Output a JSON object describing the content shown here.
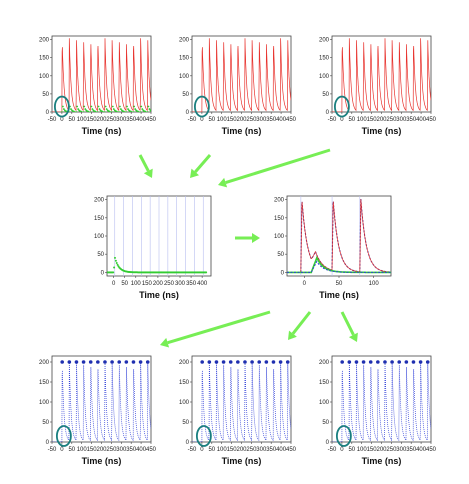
{
  "colors": {
    "red": "#e8322d",
    "green": "#33cc33",
    "blue": "#2f3fd8",
    "navy": "#1f2fb0",
    "teal": "#1a7f7f",
    "arrow": "#77ee55",
    "frame": "#444444"
  },
  "chart_data": [
    {
      "id": "top-left",
      "type": "line",
      "xlabel": "Time (ns)",
      "xticks": [
        "-50",
        "0",
        "50",
        "100",
        "150",
        "200",
        "250",
        "300",
        "350",
        "400",
        "450"
      ],
      "yticks": [
        "0",
        "50",
        "100",
        "150",
        "200"
      ],
      "xlim": [
        -50,
        450
      ],
      "ylim": [
        0,
        210
      ],
      "series": [
        {
          "color": "red",
          "style": "pulse-train",
          "pulse_times": [
            0,
            36,
            72,
            108,
            144,
            180,
            216,
            252,
            288,
            324,
            360,
            396,
            432
          ],
          "peak": 200
        },
        {
          "color": "green",
          "style": "dots",
          "pulse_times": [
            0,
            36,
            72,
            108,
            144,
            180,
            216,
            252,
            288,
            324,
            360,
            396,
            432
          ],
          "peak": 25
        }
      ],
      "highlight": {
        "x": 0,
        "y": 15
      }
    },
    {
      "id": "top-middle",
      "type": "line",
      "xlabel": "Time (ns)",
      "xticks": [
        "-50",
        "0",
        "50",
        "100",
        "150",
        "200",
        "250",
        "300",
        "350",
        "400",
        "450"
      ],
      "yticks": [
        "0",
        "50",
        "100",
        "150",
        "200"
      ],
      "xlim": [
        -50,
        450
      ],
      "ylim": [
        0,
        210
      ],
      "series": [
        {
          "color": "red",
          "style": "pulse-train",
          "pulse_times": [
            0,
            36,
            72,
            108,
            144,
            180,
            216,
            252,
            288,
            324,
            360,
            396,
            432
          ],
          "peak": 200
        }
      ],
      "highlight": {
        "x": 0,
        "y": 15
      }
    },
    {
      "id": "top-right",
      "type": "line",
      "xlabel": "Time (ns)",
      "xticks": [
        "-50",
        "0",
        "50",
        "100",
        "150",
        "200",
        "250",
        "300",
        "350",
        "400",
        "450"
      ],
      "yticks": [
        "0",
        "50",
        "100",
        "150",
        "200"
      ],
      "xlim": [
        -50,
        450
      ],
      "ylim": [
        0,
        210
      ],
      "series": [
        {
          "color": "red",
          "style": "pulse-train",
          "pulse_times": [
            0,
            36,
            72,
            108,
            144,
            180,
            216,
            252,
            288,
            324,
            360,
            396,
            432
          ],
          "peak": 200
        }
      ],
      "highlight": {
        "x": 0,
        "y": 15
      }
    },
    {
      "id": "middle-left",
      "type": "line",
      "xlabel": "Time (ns)",
      "xticks": [
        "0",
        "50",
        "100",
        "150",
        "200",
        "250",
        "300",
        "350",
        "400"
      ],
      "yticks": [
        "0",
        "50",
        "100",
        "150",
        "200"
      ],
      "xlim": [
        -30,
        440
      ],
      "ylim": [
        -10,
        210
      ],
      "vlines": [
        5,
        45,
        85,
        125,
        165,
        205,
        245,
        285,
        325,
        365,
        405
      ],
      "series": [
        {
          "color": "green",
          "style": "dots-decay",
          "start": 0,
          "peak": 40,
          "decay": 18,
          "baseline": 0,
          "x_end": 420
        }
      ]
    },
    {
      "id": "middle-right",
      "type": "line",
      "xlabel": "Time (ns)",
      "xticks": [
        "0",
        "50",
        "100"
      ],
      "yticks": [
        "0",
        "50",
        "100",
        "150",
        "200"
      ],
      "xlim": [
        -25,
        125
      ],
      "ylim": [
        -10,
        210
      ],
      "vlines": [
        -5,
        40,
        80
      ],
      "series": [
        {
          "color": "navy",
          "style": "fit",
          "pulse_times": [
            -5,
            40,
            80
          ],
          "peak": 200
        },
        {
          "color": "red",
          "style": "data",
          "pulse_times": [
            -5,
            40,
            80
          ],
          "peak": 200
        },
        {
          "color": "green",
          "style": "baseline-bump",
          "start": 10,
          "peak": 40
        },
        {
          "color": "blue",
          "style": "dashed-bump",
          "start": 10,
          "peak": 30
        }
      ]
    },
    {
      "id": "bottom-left",
      "type": "line",
      "xlabel": "Time (ns)",
      "xticks": [
        "-50",
        "0",
        "50",
        "100",
        "150",
        "200",
        "250",
        "300",
        "350",
        "400",
        "450"
      ],
      "yticks": [
        "0",
        "50",
        "100",
        "150",
        "200"
      ],
      "xlim": [
        -50,
        450
      ],
      "ylim": [
        0,
        215
      ],
      "series": [
        {
          "color": "blue",
          "style": "pulse-train-dots",
          "pulse_times": [
            0,
            36,
            72,
            108,
            144,
            180,
            216,
            252,
            288,
            324,
            360,
            396,
            432
          ],
          "peak": 200
        }
      ],
      "highlight": {
        "x": 10,
        "y": 15
      }
    },
    {
      "id": "bottom-middle",
      "type": "line",
      "xlabel": "Time (ns)",
      "xticks": [
        "-50",
        "0",
        "50",
        "100",
        "150",
        "200",
        "250",
        "300",
        "350",
        "400",
        "450"
      ],
      "yticks": [
        "0",
        "50",
        "100",
        "150",
        "200"
      ],
      "xlim": [
        -50,
        450
      ],
      "ylim": [
        0,
        215
      ],
      "series": [
        {
          "color": "blue",
          "style": "pulse-train-dots",
          "pulse_times": [
            0,
            36,
            72,
            108,
            144,
            180,
            216,
            252,
            288,
            324,
            360,
            396,
            432
          ],
          "peak": 200
        }
      ],
      "highlight": {
        "x": 10,
        "y": 15
      }
    },
    {
      "id": "bottom-right",
      "type": "line",
      "xlabel": "Time (ns)",
      "xticks": [
        "-50",
        "0",
        "50",
        "100",
        "150",
        "200",
        "250",
        "300",
        "350",
        "400",
        "450"
      ],
      "yticks": [
        "0",
        "50",
        "100",
        "150",
        "200"
      ],
      "xlim": [
        -50,
        450
      ],
      "ylim": [
        0,
        215
      ],
      "series": [
        {
          "color": "blue",
          "style": "pulse-train-dots",
          "pulse_times": [
            0,
            36,
            72,
            108,
            144,
            180,
            216,
            252,
            288,
            324,
            360,
            396,
            432
          ],
          "peak": 200
        }
      ],
      "highlight": {
        "x": 10,
        "y": 15
      }
    }
  ]
}
